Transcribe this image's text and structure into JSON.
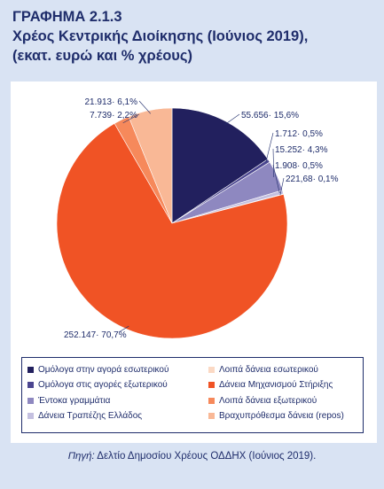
{
  "title": {
    "line1": "ΓΡΑΦΗΜΑ 2.1.3",
    "line2": "Χρέος Κεντρικής Διοίκησης (Ιούνιος 2019),",
    "line3": "(εκατ. ευρώ και % χρέους)"
  },
  "chart_data": {
    "type": "pie",
    "slices": [
      {
        "name": "Ομόλογα στην αγορά εσωτερικού",
        "value": 55656,
        "percent": 15.6,
        "label": "55.656· 15,6%",
        "color": "#22205e"
      },
      {
        "name": "Ομόλογα στις αγορές εξωτερικού",
        "value": 1712,
        "percent": 0.5,
        "label": "1.712· 0,5%",
        "color": "#4b4690"
      },
      {
        "name": "Έντοκα γραμμάτια",
        "value": 15252,
        "percent": 4.3,
        "label": "15.252· 4,3%",
        "color": "#8e88c0"
      },
      {
        "name": "Δάνεια Τραπέζης Ελλάδος",
        "value": 1908,
        "percent": 0.5,
        "label": "1.908· 0,5%",
        "color": "#c4c0e0"
      },
      {
        "name": "Λοιπά δάνεια εσωτερικού",
        "value": 221.68,
        "percent": 0.1,
        "label": "221,68· 0,1%",
        "color": "#fbd9c4"
      },
      {
        "name": "Δάνεια Μηχανισμού Στήριξης",
        "value": 252147,
        "percent": 70.7,
        "label": "252.147· 70,7%",
        "color": "#f05325"
      },
      {
        "name": "Λοιπά δάνεια εξωτερικού",
        "value": 7739,
        "percent": 2.2,
        "label": "7.739· 2,2%",
        "color": "#f6895b"
      },
      {
        "name": "Βραχυπρόθεσμα δάνεια (repos)",
        "value": 21913,
        "percent": 6.1,
        "label": "21.913· 6,1%",
        "color": "#f9b896"
      }
    ],
    "legend_order": [
      0,
      4,
      1,
      5,
      2,
      6,
      3,
      7
    ],
    "legend_placement": "bottom"
  },
  "source": {
    "prefix": "Πηγή:",
    "text": " Δελτίο Δημοσίου Χρέους ΟΔΔΗΧ (Ιούνιος 2019)."
  }
}
